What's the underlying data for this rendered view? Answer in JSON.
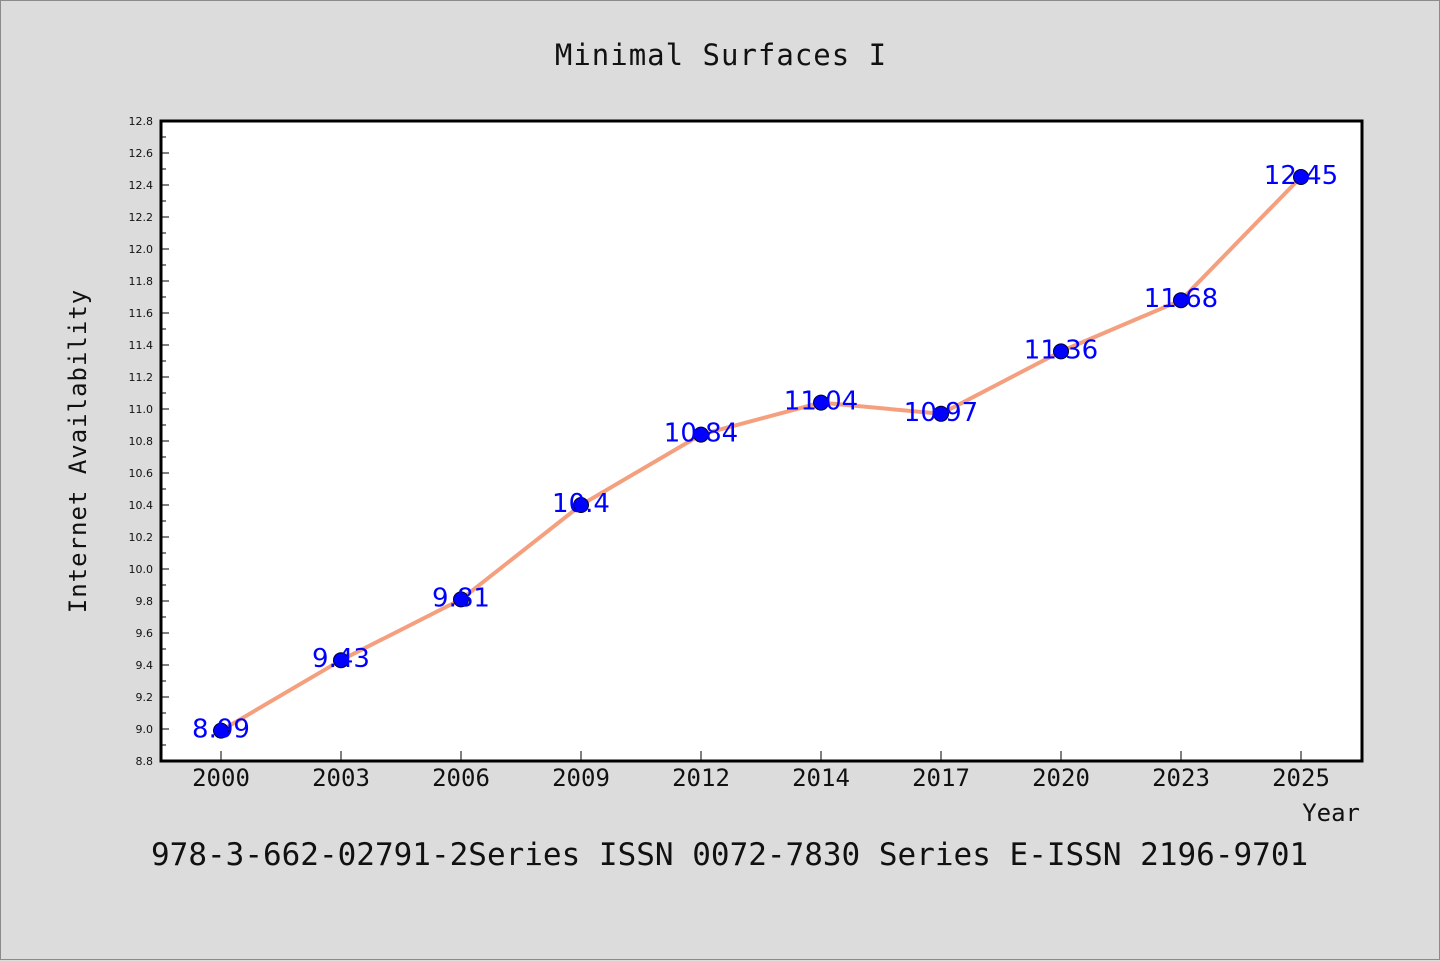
{
  "chart_data": {
    "type": "line",
    "title": "Minimal Surfaces I",
    "xlabel": "Year",
    "ylabel": "Internet Availability",
    "categories": [
      "2000",
      "2003",
      "2006",
      "2009",
      "2012",
      "2014",
      "2017",
      "2020",
      "2023",
      "2025"
    ],
    "series": [
      {
        "values": [
          8.99,
          9.43,
          9.81,
          10.4,
          10.84,
          11.04,
          10.97,
          11.36,
          11.68,
          12.45
        ]
      }
    ],
    "data_labels": [
      "8.99",
      "9.43",
      "9.81",
      "10.4",
      "10.84",
      "11.04",
      "10.97",
      "11.36",
      "11.68",
      "12.45"
    ],
    "ylim": [
      8.8,
      12.8
    ],
    "yticks": [
      "8.8",
      "9.0",
      "9.2",
      "9.4",
      "9.6",
      "9.8",
      "10.0",
      "10.2",
      "10.4",
      "10.6",
      "10.8",
      "11.0",
      "11.2",
      "11.4",
      "11.6",
      "11.8",
      "12.0",
      "12.2",
      "12.4",
      "12.6",
      "12.8"
    ],
    "grid": false,
    "line_color": "#f4a07f",
    "marker_color": "#0000ff",
    "label_color": "#0000ff"
  },
  "footer": "978-3-662-02791-2Series ISSN 0072-7830 Series E-ISSN 2196-9701"
}
